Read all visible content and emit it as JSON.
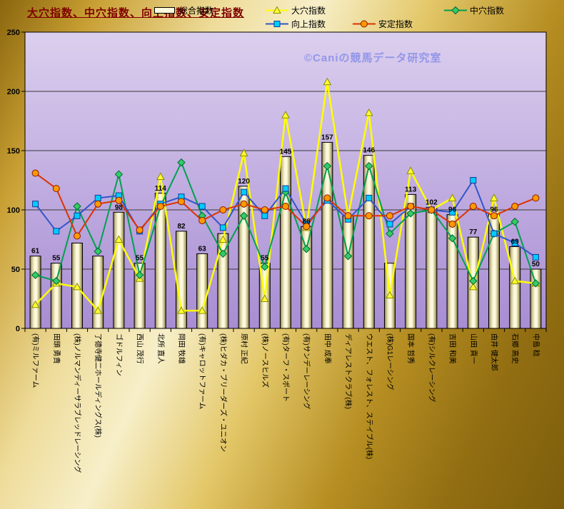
{
  "title": "大穴指数、中穴指数、向上指数、安定指数",
  "watermark": "©Caniの競馬データ研究室",
  "colors": {
    "title_text": "#800000",
    "frame_gold": "#d9ba55",
    "plot_top": "#dbcfee",
    "plot_bottom": "#a88dd3",
    "bar_fill": "#fdf9dc",
    "bar_edge": "#7d744a",
    "ooana_line": "#ffff00",
    "chuana_line": "#00a050",
    "koujou_line": "#3355cc",
    "koujou_marker": "#00ccff",
    "antei_line": "#dd3300",
    "antei_marker": "#ff9900",
    "watermark_text": "#8088e8"
  },
  "chart_data": {
    "type": "bar+line combo",
    "title": "大穴指数、中穴指数、向上指数、安定指数",
    "ylim": [
      0,
      250
    ],
    "yticks": [
      0,
      50,
      100,
      150,
      200,
      250
    ],
    "grid": true,
    "legend_position": "top",
    "categories": [
      "(有)ミルファーム",
      "田頭 勇貴",
      "(株)ノルマンディーサラブレッドレーシング",
      "了德寺健二ホールディングス(株)",
      "ゴドルフィン",
      "西山 茂行",
      "北所 直人",
      "岡田 牧雄",
      "(有)キャロットファーム",
      "(株)ヒダカ・ブリーダーズ・ユニオン",
      "原村 正紀",
      "(株)ノースヒルズ",
      "(有)ターフ・スポート",
      "(有)サンデーレーシング",
      "田中 成奉",
      "ディアレストクラブ(株)",
      "ウエスト、フォレスト、ステイブル(株)",
      "(株)G1レーシング",
      "国本 哲秀",
      "(有)シルクレーシング",
      "吉田 和美",
      "山田 貢一",
      "由井 健太郎",
      "石郷 高史",
      "中島 稔"
    ],
    "series": [
      {
        "name": "総合指数",
        "key": "sougou",
        "type": "bar",
        "values": [
          61,
          55,
          72,
          61,
          98,
          55,
          114,
          82,
          63,
          80,
          120,
          55,
          145,
          86,
          157,
          95,
          146,
          55,
          113,
          102,
          96,
          77,
          96,
          69,
          50
        ],
        "labels_shown": [
          true,
          true,
          false,
          false,
          true,
          true,
          true,
          true,
          true,
          false,
          true,
          true,
          true,
          true,
          true,
          false,
          true,
          false,
          true,
          true,
          true,
          true,
          true,
          true,
          true
        ]
      },
      {
        "name": "大穴指数",
        "key": "ooana",
        "type": "line",
        "marker": "triangle",
        "color": "#ffff00",
        "marker_fill": "#ffff33",
        "marker_stroke": "#8a8a00",
        "values": [
          20,
          38,
          35,
          15,
          75,
          42,
          128,
          15,
          15,
          75,
          148,
          25,
          180,
          85,
          208,
          95,
          182,
          28,
          133,
          100,
          110,
          35,
          110,
          40,
          38
        ]
      },
      {
        "name": "中穴指数",
        "key": "chuana",
        "type": "line",
        "marker": "diamond",
        "color": "#00a050",
        "marker_fill": "#33cc66",
        "marker_stroke": "#006633",
        "values": [
          45,
          40,
          103,
          65,
          130,
          45,
          103,
          140,
          95,
          63,
          95,
          52,
          115,
          67,
          137,
          61,
          137,
          80,
          97,
          100,
          76,
          40,
          80,
          90,
          38
        ]
      },
      {
        "name": "向上指数",
        "key": "koujou",
        "type": "line",
        "marker": "square",
        "color": "#3355cc",
        "marker_fill": "#00ccff",
        "marker_stroke": "#103a9a",
        "values": [
          105,
          82,
          95,
          110,
          112,
          82,
          105,
          111,
          103,
          85,
          115,
          95,
          118,
          88,
          108,
          92,
          110,
          88,
          103,
          100,
          98,
          125,
          80,
          72,
          60
        ]
      },
      {
        "name": "安定指数",
        "key": "antei",
        "type": "line",
        "marker": "circle",
        "color": "#dd3300",
        "marker_fill": "#ff9900",
        "marker_stroke": "#8a1a00",
        "values": [
          131,
          118,
          78,
          105,
          108,
          83,
          103,
          107,
          91,
          100,
          105,
          100,
          103,
          86,
          110,
          95,
          95,
          95,
          103,
          100,
          88,
          103,
          95,
          103,
          110
        ]
      }
    ]
  }
}
